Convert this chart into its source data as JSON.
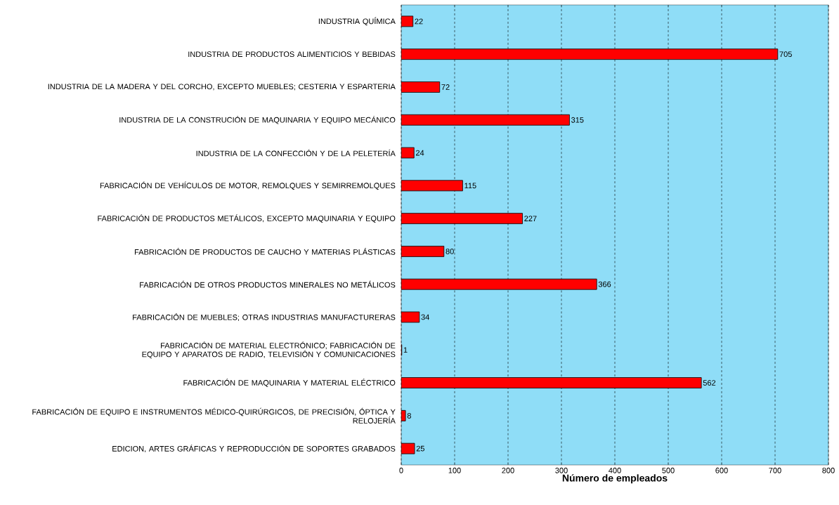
{
  "chart_data": {
    "type": "bar",
    "orientation": "horizontal",
    "xlabel": "Número de empleados",
    "categories": [
      "INDUSTRIA QUÍMICA",
      "INDUSTRIA DE PRODUCTOS ALIMENTICIOS Y BEBIDAS",
      "INDUSTRIA DE LA MADERA Y DEL CORCHO, EXCEPTO MUEBLES; CESTERIA Y ESPARTERIA",
      "INDUSTRIA DE LA CONSTRUCIÓN DE MAQUINARIA Y EQUIPO MECÁNICO",
      "INDUSTRIA DE LA CONFECCIÓN Y DE LA PELETERÍA",
      "FABRICACIÓN DE VEHÍCULOS DE MOTOR, REMOLQUES Y SEMIRREMOLQUES",
      "FABRICACIÓN DE PRODUCTOS METÁLICOS, EXCEPTO MAQUINARIA Y EQUIPO",
      "FABRICACIÓN DE PRODUCTOS DE CAUCHO Y MATERIAS PLÁSTICAS",
      "FABRICACIÓN DE OTROS PRODUCTOS MINERALES NO METÁLICOS",
      "FABRICACIÓN DE MUEBLES; OTRAS INDUSTRIAS MANUFACTURERAS",
      "FABRICACIÓN DE MATERIAL ELECTRÓNICO; FABRICACIÓN DE EQUIPO Y APARATOS DE RADIO, TELEVISIÓN Y COMUNICACIONES",
      "FABRICACIÓN DE MAQUINARIA Y MATERIAL ELÉCTRICO",
      "FABRICACIÓN DE EQUIPO E INSTRUMENTOS MÉDICO-QUIRÚRGICOS, DE PRECISIÓN, ÓPTICA Y RELOJERÍA",
      "EDICION, ARTES GRÁFICAS Y REPRODUCCIÓN DE SOPORTES GRABADOS"
    ],
    "values": [
      22,
      705,
      72,
      315,
      24,
      115,
      227,
      80,
      366,
      34,
      1,
      562,
      8,
      25
    ],
    "color": "#ff0000",
    "xlim": [
      0,
      800
    ],
    "xticks": [
      0,
      100,
      200,
      300,
      400,
      500,
      600,
      700,
      800
    ],
    "grid": "x",
    "data_labels": true
  }
}
